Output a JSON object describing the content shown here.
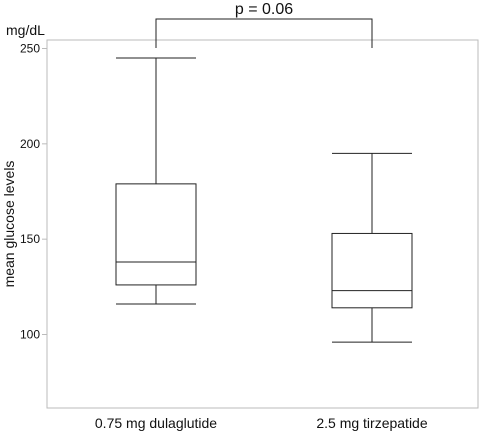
{
  "chart_data": {
    "type": "boxplot",
    "ylabel": "mean glucose levels",
    "unit": "mg/dL",
    "ylim": [
      60,
      250
    ],
    "yticks": [
      100,
      150,
      200,
      250
    ],
    "categories": [
      "0.75 mg dulaglutide",
      "2.5 mg tirzepatide"
    ],
    "boxes": [
      {
        "category": "0.75 mg dulaglutide",
        "whisker_low": 116,
        "q1": 126,
        "median": 138,
        "q3": 179,
        "whisker_high": 245
      },
      {
        "category": "2.5 mg tirzepatide",
        "whisker_low": 96,
        "q1": 114,
        "median": 123,
        "q3": 153,
        "whisker_high": 195
      }
    ],
    "annotation": {
      "text": "p = 0.06",
      "between": [
        0,
        1
      ]
    },
    "grid": false,
    "colors": {
      "line": "#222222",
      "frame": "#bbbbbb"
    }
  }
}
